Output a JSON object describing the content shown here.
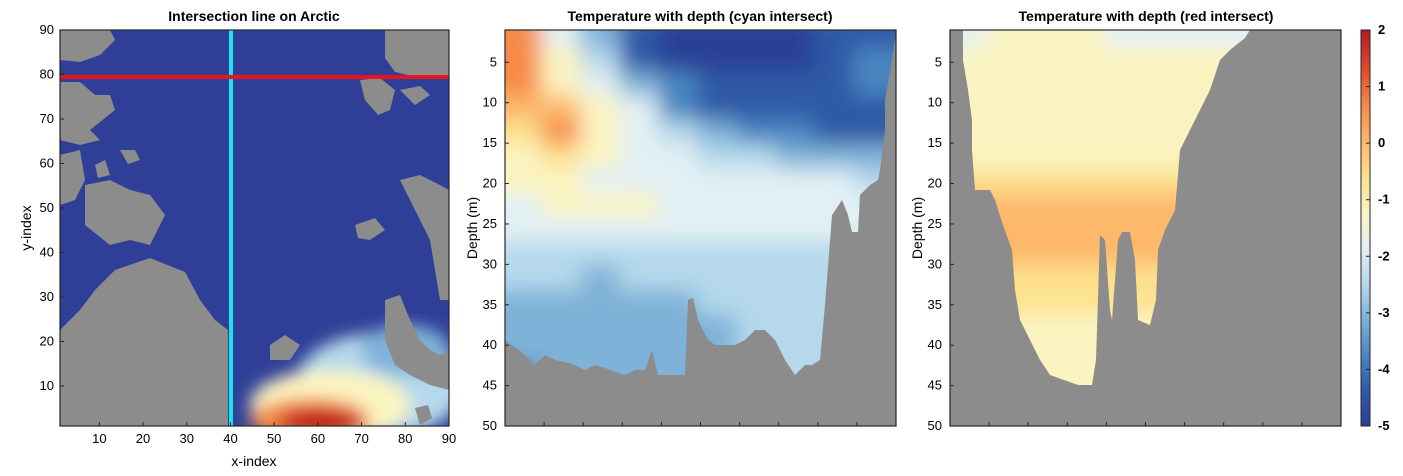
{
  "colors": {
    "land": "#8c8c8c",
    "cyan_line": "#19e3ef",
    "red_line": "#e8141c",
    "frame": "#262626"
  },
  "colormap": [
    "#2a3f96",
    "#2f5aa6",
    "#4a86c1",
    "#7fb2d8",
    "#b5d9eb",
    "#e2f0f4",
    "#fbf4c0",
    "#fde18f",
    "#fdb86a",
    "#f68a4a",
    "#df4a2e",
    "#b11a27"
  ],
  "chart_data": [
    {
      "type": "heatmap",
      "title": "Intersection line on Arctic",
      "xlabel": "x-index",
      "ylabel": "y-index",
      "xlim": [
        1,
        90
      ],
      "ylim": [
        1,
        90
      ],
      "xticks": [
        "10",
        "20",
        "30",
        "40",
        "50",
        "60",
        "70",
        "80",
        "90"
      ],
      "yticks": [
        "10",
        "20",
        "30",
        "40",
        "50",
        "60",
        "70",
        "80",
        "90"
      ],
      "lines": [
        {
          "orientation": "vertical",
          "x": 40,
          "color": "cyan"
        },
        {
          "orientation": "horizontal",
          "y": 79,
          "color": "red"
        }
      ]
    },
    {
      "type": "heatmap",
      "title": "Temperature with depth (cyan intersect)",
      "xlabel": "",
      "ylabel": "Depth (m)",
      "ylim": [
        1,
        50
      ],
      "yticks": [
        "5",
        "10",
        "15",
        "20",
        "25",
        "30",
        "35",
        "40",
        "45",
        "50"
      ],
      "profile_rows": [
        {
          "depth": 2,
          "values": [
            0.8,
            -1.8,
            -2.8,
            -4.6,
            -4.9,
            -4.8,
            -4.8,
            -4.7,
            -4.6,
            -4.5
          ]
        },
        {
          "depth": 5,
          "values": [
            0.9,
            -1.5,
            -2.5,
            -4.5,
            -4.8,
            -4.8,
            -4.9,
            -4.7,
            -4.4,
            -3.5
          ]
        },
        {
          "depth": 8,
          "values": [
            0.5,
            -1.0,
            -1.6,
            -3.0,
            -4.0,
            -4.4,
            -4.6,
            -4.4,
            -4.2,
            -3.8
          ]
        },
        {
          "depth": 11,
          "values": [
            0.0,
            0.3,
            -1.0,
            -2.0,
            -3.5,
            -4.2,
            -4.5,
            -4.4,
            -4.2,
            -4.3
          ]
        },
        {
          "depth": 14,
          "values": [
            -0.5,
            0.6,
            -1.0,
            -1.8,
            -2.5,
            -3.2,
            -3.8,
            -4.0,
            -4.2,
            -4.3
          ]
        },
        {
          "depth": 17,
          "values": [
            -1.2,
            -0.3,
            -1.4,
            -1.9,
            -2.1,
            -2.2,
            -2.5,
            -2.8,
            -3.0,
            -3.2
          ]
        },
        {
          "depth": 20,
          "values": [
            -1.5,
            -1.4,
            -1.6,
            -1.8,
            -1.8,
            -1.8,
            -1.8,
            -1.9,
            -2.0,
            -2.2
          ]
        },
        {
          "depth": 23,
          "values": [
            -1.6,
            -1.5,
            -1.5,
            -1.5,
            -1.6,
            -1.6,
            -1.6,
            -1.6,
            -1.7,
            -1.9
          ]
        },
        {
          "depth": 26,
          "values": [
            -1.8,
            -1.8,
            -1.7,
            -1.7,
            -1.7,
            -1.6,
            -1.7,
            -1.7,
            -1.8,
            -2.0
          ]
        },
        {
          "depth": 29,
          "values": [
            -2.3,
            -2.4,
            -2.5,
            -2.4,
            -2.3,
            -2.2,
            -2.3,
            -2.4,
            -2.5,
            -2.6
          ]
        },
        {
          "depth": 32,
          "values": [
            -2.7,
            -2.7,
            -2.9,
            -2.7,
            -2.6,
            -2.5,
            -2.5,
            -2.6,
            -2.6,
            -2.7
          ]
        },
        {
          "depth": 35,
          "values": [
            -3.0,
            -3.0,
            -3.2,
            -3.0,
            -2.8,
            -2.7,
            -2.6,
            -2.6,
            -2.5,
            -2.6
          ]
        },
        {
          "depth": 38,
          "values": [
            -3.2,
            -3.2,
            -3.4,
            -3.3,
            -3.0,
            -2.8,
            -2.6,
            -2.5,
            -2.4,
            -2.4
          ]
        },
        {
          "depth": 41,
          "values": [
            -3.4,
            -3.3,
            -3.3,
            -3.3,
            -3.1,
            -2.9,
            -2.6,
            -2.4,
            -2.3,
            -2.3
          ]
        },
        {
          "depth": 44,
          "values": [
            -3.5,
            -3.4,
            -3.3,
            -3.2,
            -3.1,
            -2.9,
            -2.6,
            -2.3,
            -2.2,
            -2.2
          ]
        }
      ]
    },
    {
      "type": "heatmap",
      "title": "Temperature with depth (red intersect)",
      "xlabel": "",
      "ylabel": "Depth (m)",
      "ylim": [
        1,
        50
      ],
      "yticks": [
        "5",
        "10",
        "15",
        "20",
        "25",
        "30",
        "35",
        "40",
        "45",
        "50"
      ],
      "profile_rows": [
        {
          "depth": 2,
          "values": [
            -1.6,
            -1.5,
            -1.5,
            -1.5,
            -1.6,
            -1.6,
            -1.6,
            -1.6,
            -1.6,
            -1.6
          ]
        },
        {
          "depth": 5,
          "values": [
            -1.5,
            -1.4,
            -1.4,
            -1.3,
            -1.3,
            -1.4,
            -1.4,
            -1.3,
            -1.4,
            -1.5
          ]
        },
        {
          "depth": 8,
          "values": [
            -1.4,
            -1.3,
            -1.3,
            -1.2,
            -1.3,
            -1.3,
            -1.3,
            -1.3,
            -1.3,
            -1.4
          ]
        },
        {
          "depth": 11,
          "values": [
            -1.5,
            -1.4,
            -1.4,
            -1.3,
            -1.4,
            -1.5,
            -1.5,
            -1.4,
            -1.4,
            -1.4
          ]
        },
        {
          "depth": 14,
          "values": [
            -1.4,
            -1.3,
            -1.2,
            -1.2,
            -1.3,
            -1.3,
            -1.3,
            -1.2,
            -1.2,
            -1.3
          ]
        },
        {
          "depth": 17,
          "values": [
            -1.1,
            -1.0,
            -0.9,
            -0.9,
            -0.9,
            -0.9,
            -0.9,
            -0.9,
            -0.9,
            -1.0
          ]
        },
        {
          "depth": 20,
          "values": [
            -0.4,
            -0.3,
            -0.3,
            -0.3,
            -0.3,
            -0.3,
            -0.3,
            -0.3,
            -0.3,
            -0.4
          ]
        },
        {
          "depth": 23,
          "values": [
            0.0,
            0.1,
            0.1,
            0.1,
            0.1,
            0.1,
            0.1,
            0.1,
            0.1,
            0.0
          ]
        },
        {
          "depth": 26,
          "values": [
            0.1,
            0.2,
            0.2,
            0.2,
            0.2,
            0.2,
            0.2,
            0.2,
            0.2,
            0.1
          ]
        },
        {
          "depth": 29,
          "values": [
            -0.2,
            -0.1,
            -0.1,
            -0.1,
            -0.1,
            -0.1,
            -0.1,
            -0.1,
            -0.1,
            -0.2
          ]
        },
        {
          "depth": 32,
          "values": [
            -0.6,
            -0.5,
            -0.5,
            -0.5,
            -0.5,
            -0.5,
            -0.5,
            -0.5,
            -0.5,
            -0.6
          ]
        },
        {
          "depth": 35,
          "values": [
            -0.9,
            -0.8,
            -0.8,
            -0.8,
            -0.8,
            -0.8,
            -0.8,
            -0.8,
            -0.8,
            -0.9
          ]
        },
        {
          "depth": 38,
          "values": [
            -1.0,
            -0.9,
            -0.9,
            -0.9,
            -0.9,
            -0.9,
            -0.9,
            -0.9,
            -0.9,
            -1.0
          ]
        },
        {
          "depth": 41,
          "values": [
            -1.0,
            -1.0,
            -1.0,
            -1.0,
            -1.0,
            -1.0,
            -1.0,
            -1.0,
            -1.0,
            -1.0
          ]
        },
        {
          "depth": 44,
          "values": [
            -1.0,
            -1.0,
            -1.0,
            -1.0,
            -1.0,
            -1.0,
            -1.0,
            -1.0,
            -1.0,
            -1.0
          ]
        }
      ]
    },
    {
      "type": "colorbar",
      "clim": [
        -5,
        2
      ],
      "ticks": [
        "2",
        "1",
        "0",
        "-1",
        "-2",
        "-3",
        "-4",
        "-5"
      ]
    }
  ]
}
